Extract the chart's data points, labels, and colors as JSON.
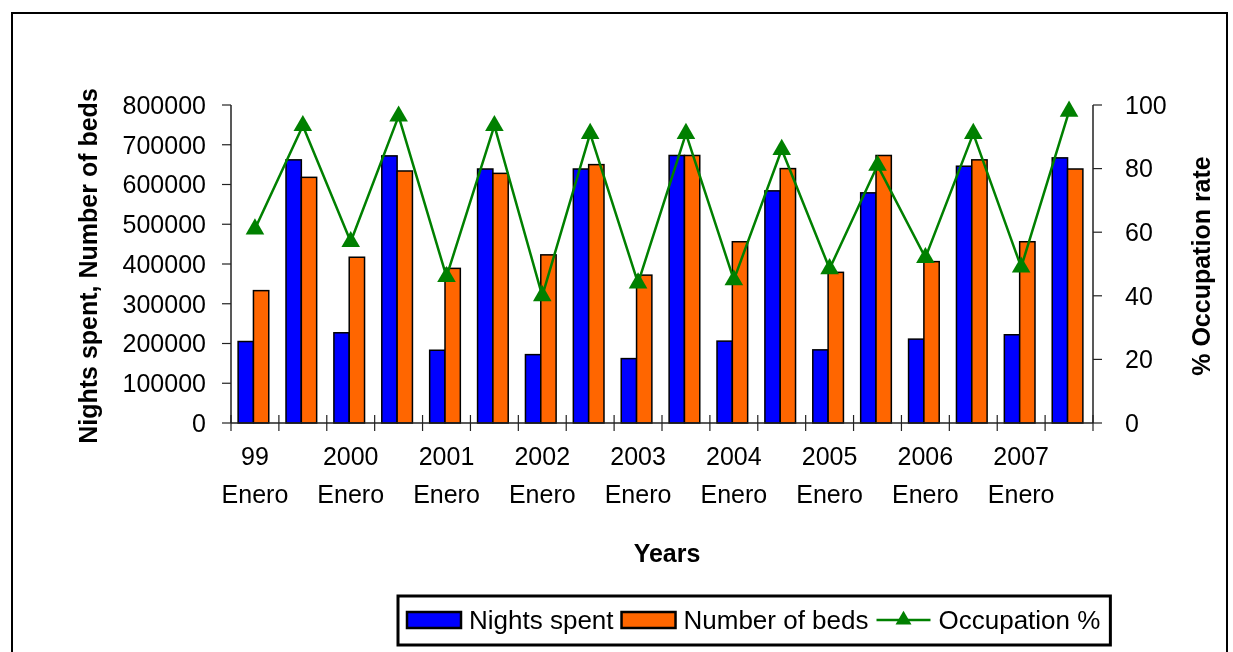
{
  "chart_data": {
    "type": "bar",
    "xlabel": "Years",
    "ylabel": "Nights spent, Number of beds",
    "y2label": "% Occupation rate",
    "categories": [
      "99 Enero",
      null,
      "2000 Enero",
      null,
      "2001 Enero",
      null,
      "2002 Enero",
      null,
      "2003 Enero",
      null,
      "2004 Enero",
      null,
      "2005 Enero",
      null,
      "2006 Enero",
      null,
      "2007 Enero",
      null
    ],
    "series": [
      {
        "name": "Nights spent",
        "color": "#0000ff",
        "values": [
          205000,
          662000,
          227000,
          672000,
          183000,
          639000,
          172000,
          639000,
          162000,
          673000,
          206000,
          584000,
          184000,
          579000,
          211000,
          646000,
          222000,
          667000
        ]
      },
      {
        "name": "Number of beds",
        "color": "#ff6600",
        "values": [
          333000,
          618000,
          417000,
          634000,
          389000,
          628000,
          423000,
          650000,
          372000,
          673000,
          456000,
          640000,
          379000,
          673000,
          406000,
          662000,
          456000,
          639000
        ]
      },
      {
        "name": "Occupation %",
        "type": "line",
        "axis": "y2",
        "color": "#008000",
        "marker": "triangle",
        "values": [
          61,
          93.5,
          57,
          96.5,
          46,
          93.5,
          40,
          91,
          44,
          91,
          45,
          86,
          48.5,
          81,
          52,
          91,
          49,
          98
        ]
      }
    ],
    "ylim": [
      0,
      800000
    ],
    "yticks": [
      0,
      100000,
      200000,
      300000,
      400000,
      500000,
      600000,
      700000,
      800000
    ],
    "y2lim": [
      0,
      100
    ],
    "y2ticks": [
      0,
      20,
      40,
      60,
      80,
      100
    ],
    "legend": "bottom"
  }
}
